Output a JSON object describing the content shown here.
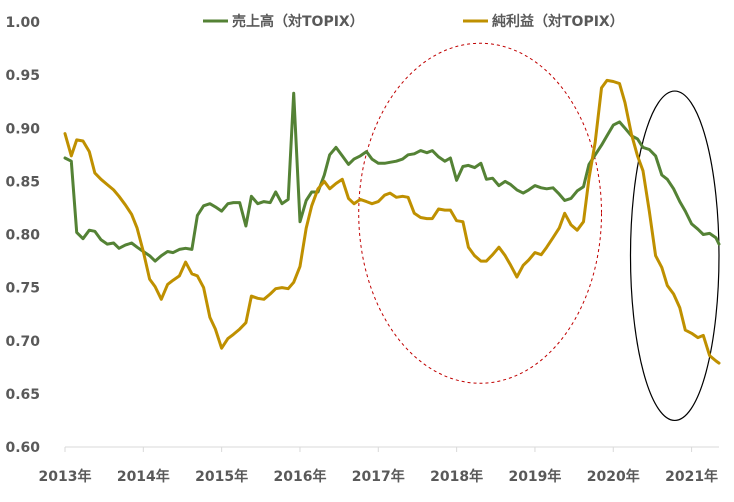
{
  "chart_data": {
    "type": "line",
    "title": "",
    "xlabel": "",
    "ylabel": "",
    "ylim": [
      0.6,
      1.0
    ],
    "xlim": [
      2013.0,
      2021.35
    ],
    "grid": false,
    "legend_position": "top",
    "y_ticks": [
      "0.60",
      "0.65",
      "0.70",
      "0.75",
      "0.80",
      "0.85",
      "0.90",
      "0.95",
      "1.00"
    ],
    "x_ticks": [
      {
        "label": "2013年",
        "value": 2013
      },
      {
        "label": "2014年",
        "value": 2014
      },
      {
        "label": "2015年",
        "value": 2015
      },
      {
        "label": "2016年",
        "value": 2016
      },
      {
        "label": "2017年",
        "value": 2017
      },
      {
        "label": "2018年",
        "value": 2018
      },
      {
        "label": "2019年",
        "value": 2019
      },
      {
        "label": "2020年",
        "value": 2020
      },
      {
        "label": "2021年",
        "value": 2021
      }
    ],
    "series": [
      {
        "name": "売上高（対TOPIX）",
        "color": "#548235",
        "points": [
          [
            2013.0,
            0.872
          ],
          [
            2013.08,
            0.869
          ],
          [
            2013.15,
            0.802
          ],
          [
            2013.23,
            0.796
          ],
          [
            2013.31,
            0.804
          ],
          [
            2013.38,
            0.803
          ],
          [
            2013.46,
            0.795
          ],
          [
            2013.54,
            0.791
          ],
          [
            2013.62,
            0.792
          ],
          [
            2013.69,
            0.787
          ],
          [
            2013.77,
            0.79
          ],
          [
            2013.85,
            0.792
          ],
          [
            2013.92,
            0.788
          ],
          [
            2014.0,
            0.784
          ],
          [
            2014.08,
            0.78
          ],
          [
            2014.15,
            0.775
          ],
          [
            2014.23,
            0.78
          ],
          [
            2014.31,
            0.784
          ],
          [
            2014.38,
            0.783
          ],
          [
            2014.46,
            0.786
          ],
          [
            2014.54,
            0.787
          ],
          [
            2014.62,
            0.786
          ],
          [
            2014.69,
            0.818
          ],
          [
            2014.77,
            0.827
          ],
          [
            2014.85,
            0.829
          ],
          [
            2014.92,
            0.826
          ],
          [
            2015.0,
            0.822
          ],
          [
            2015.08,
            0.829
          ],
          [
            2015.15,
            0.83
          ],
          [
            2015.23,
            0.83
          ],
          [
            2015.31,
            0.808
          ],
          [
            2015.38,
            0.836
          ],
          [
            2015.46,
            0.829
          ],
          [
            2015.54,
            0.831
          ],
          [
            2015.62,
            0.83
          ],
          [
            2015.69,
            0.84
          ],
          [
            2015.77,
            0.829
          ],
          [
            2015.85,
            0.833
          ],
          [
            2015.92,
            0.933
          ],
          [
            2016.0,
            0.812
          ],
          [
            2016.08,
            0.832
          ],
          [
            2016.15,
            0.84
          ],
          [
            2016.23,
            0.84
          ],
          [
            2016.31,
            0.856
          ],
          [
            2016.38,
            0.875
          ],
          [
            2016.46,
            0.882
          ],
          [
            2016.54,
            0.874
          ],
          [
            2016.62,
            0.866
          ],
          [
            2016.69,
            0.871
          ],
          [
            2016.77,
            0.874
          ],
          [
            2016.85,
            0.878
          ],
          [
            2016.92,
            0.871
          ],
          [
            2017.0,
            0.867
          ],
          [
            2017.08,
            0.867
          ],
          [
            2017.15,
            0.868
          ],
          [
            2017.23,
            0.869
          ],
          [
            2017.31,
            0.871
          ],
          [
            2017.38,
            0.875
          ],
          [
            2017.46,
            0.876
          ],
          [
            2017.54,
            0.879
          ],
          [
            2017.62,
            0.877
          ],
          [
            2017.69,
            0.879
          ],
          [
            2017.77,
            0.873
          ],
          [
            2017.85,
            0.869
          ],
          [
            2017.92,
            0.872
          ],
          [
            2018.0,
            0.851
          ],
          [
            2018.08,
            0.864
          ],
          [
            2018.15,
            0.865
          ],
          [
            2018.23,
            0.863
          ],
          [
            2018.31,
            0.867
          ],
          [
            2018.38,
            0.852
          ],
          [
            2018.46,
            0.853
          ],
          [
            2018.54,
            0.846
          ],
          [
            2018.62,
            0.85
          ],
          [
            2018.69,
            0.847
          ],
          [
            2018.77,
            0.842
          ],
          [
            2018.85,
            0.839
          ],
          [
            2018.92,
            0.842
          ],
          [
            2019.0,
            0.846
          ],
          [
            2019.08,
            0.844
          ],
          [
            2019.15,
            0.843
          ],
          [
            2019.23,
            0.844
          ],
          [
            2019.31,
            0.838
          ],
          [
            2019.38,
            0.832
          ],
          [
            2019.46,
            0.834
          ],
          [
            2019.54,
            0.841
          ],
          [
            2019.62,
            0.845
          ],
          [
            2019.69,
            0.866
          ],
          [
            2019.77,
            0.875
          ],
          [
            2019.85,
            0.884
          ],
          [
            2019.92,
            0.893
          ],
          [
            2020.0,
            0.903
          ],
          [
            2020.08,
            0.906
          ],
          [
            2020.15,
            0.9
          ],
          [
            2020.23,
            0.893
          ],
          [
            2020.31,
            0.89
          ],
          [
            2020.38,
            0.882
          ],
          [
            2020.46,
            0.88
          ],
          [
            2020.54,
            0.874
          ],
          [
            2020.62,
            0.856
          ],
          [
            2020.69,
            0.852
          ],
          [
            2020.77,
            0.843
          ],
          [
            2020.85,
            0.831
          ],
          [
            2020.92,
            0.822
          ],
          [
            2021.0,
            0.81
          ],
          [
            2021.08,
            0.805
          ],
          [
            2021.15,
            0.8
          ],
          [
            2021.23,
            0.801
          ],
          [
            2021.31,
            0.797
          ],
          [
            2021.35,
            0.791
          ]
        ]
      },
      {
        "name": "純利益（対TOPIX）",
        "color": "#BF9000",
        "points": [
          [
            2013.0,
            0.895
          ],
          [
            2013.08,
            0.874
          ],
          [
            2013.15,
            0.889
          ],
          [
            2013.23,
            0.888
          ],
          [
            2013.31,
            0.878
          ],
          [
            2013.38,
            0.858
          ],
          [
            2013.46,
            0.852
          ],
          [
            2013.54,
            0.847
          ],
          [
            2013.62,
            0.842
          ],
          [
            2013.69,
            0.836
          ],
          [
            2013.77,
            0.828
          ],
          [
            2013.85,
            0.819
          ],
          [
            2013.92,
            0.806
          ],
          [
            2014.0,
            0.784
          ],
          [
            2014.08,
            0.758
          ],
          [
            2014.15,
            0.751
          ],
          [
            2014.23,
            0.739
          ],
          [
            2014.31,
            0.753
          ],
          [
            2014.38,
            0.757
          ],
          [
            2014.46,
            0.761
          ],
          [
            2014.54,
            0.774
          ],
          [
            2014.62,
            0.763
          ],
          [
            2014.69,
            0.761
          ],
          [
            2014.77,
            0.75
          ],
          [
            2014.85,
            0.722
          ],
          [
            2014.92,
            0.711
          ],
          [
            2015.0,
            0.693
          ],
          [
            2015.08,
            0.702
          ],
          [
            2015.15,
            0.706
          ],
          [
            2015.23,
            0.711
          ],
          [
            2015.31,
            0.717
          ],
          [
            2015.38,
            0.742
          ],
          [
            2015.46,
            0.74
          ],
          [
            2015.54,
            0.739
          ],
          [
            2015.62,
            0.744
          ],
          [
            2015.69,
            0.749
          ],
          [
            2015.77,
            0.75
          ],
          [
            2015.85,
            0.749
          ],
          [
            2015.92,
            0.755
          ],
          [
            2016.0,
            0.77
          ],
          [
            2016.08,
            0.806
          ],
          [
            2016.15,
            0.827
          ],
          [
            2016.23,
            0.843
          ],
          [
            2016.31,
            0.85
          ],
          [
            2016.38,
            0.843
          ],
          [
            2016.46,
            0.848
          ],
          [
            2016.54,
            0.852
          ],
          [
            2016.62,
            0.834
          ],
          [
            2016.69,
            0.829
          ],
          [
            2016.77,
            0.833
          ],
          [
            2016.85,
            0.831
          ],
          [
            2016.92,
            0.829
          ],
          [
            2017.0,
            0.831
          ],
          [
            2017.08,
            0.837
          ],
          [
            2017.15,
            0.839
          ],
          [
            2017.23,
            0.835
          ],
          [
            2017.31,
            0.836
          ],
          [
            2017.38,
            0.835
          ],
          [
            2017.46,
            0.82
          ],
          [
            2017.54,
            0.816
          ],
          [
            2017.62,
            0.815
          ],
          [
            2017.69,
            0.815
          ],
          [
            2017.77,
            0.824
          ],
          [
            2017.85,
            0.823
          ],
          [
            2017.92,
            0.823
          ],
          [
            2018.0,
            0.813
          ],
          [
            2018.08,
            0.812
          ],
          [
            2018.15,
            0.788
          ],
          [
            2018.23,
            0.78
          ],
          [
            2018.31,
            0.775
          ],
          [
            2018.38,
            0.775
          ],
          [
            2018.46,
            0.781
          ],
          [
            2018.54,
            0.788
          ],
          [
            2018.62,
            0.78
          ],
          [
            2018.69,
            0.771
          ],
          [
            2018.77,
            0.76
          ],
          [
            2018.85,
            0.771
          ],
          [
            2018.92,
            0.776
          ],
          [
            2019.0,
            0.783
          ],
          [
            2019.08,
            0.781
          ],
          [
            2019.15,
            0.788
          ],
          [
            2019.23,
            0.797
          ],
          [
            2019.31,
            0.806
          ],
          [
            2019.38,
            0.82
          ],
          [
            2019.46,
            0.809
          ],
          [
            2019.54,
            0.804
          ],
          [
            2019.62,
            0.812
          ],
          [
            2019.69,
            0.853
          ],
          [
            2019.77,
            0.887
          ],
          [
            2019.85,
            0.938
          ],
          [
            2019.92,
            0.945
          ],
          [
            2020.0,
            0.944
          ],
          [
            2020.08,
            0.942
          ],
          [
            2020.15,
            0.924
          ],
          [
            2020.23,
            0.895
          ],
          [
            2020.31,
            0.874
          ],
          [
            2020.38,
            0.86
          ],
          [
            2020.46,
            0.822
          ],
          [
            2020.54,
            0.78
          ],
          [
            2020.62,
            0.769
          ],
          [
            2020.69,
            0.752
          ],
          [
            2020.77,
            0.744
          ],
          [
            2020.85,
            0.731
          ],
          [
            2020.92,
            0.71
          ],
          [
            2021.0,
            0.707
          ],
          [
            2021.08,
            0.703
          ],
          [
            2021.15,
            0.705
          ],
          [
            2021.23,
            0.686
          ],
          [
            2021.31,
            0.681
          ],
          [
            2021.35,
            0.679
          ]
        ]
      }
    ],
    "annotations": [
      {
        "shape": "ellipse",
        "style": "dashed",
        "color": "#C00000",
        "x_range": [
          2016.75,
          2019.85
        ],
        "y_range": [
          0.66,
          0.98
        ]
      },
      {
        "shape": "ellipse",
        "style": "solid",
        "color": "#000000",
        "x_range": [
          2020.22,
          2021.35
        ],
        "y_range": [
          0.625,
          0.935
        ]
      }
    ]
  }
}
